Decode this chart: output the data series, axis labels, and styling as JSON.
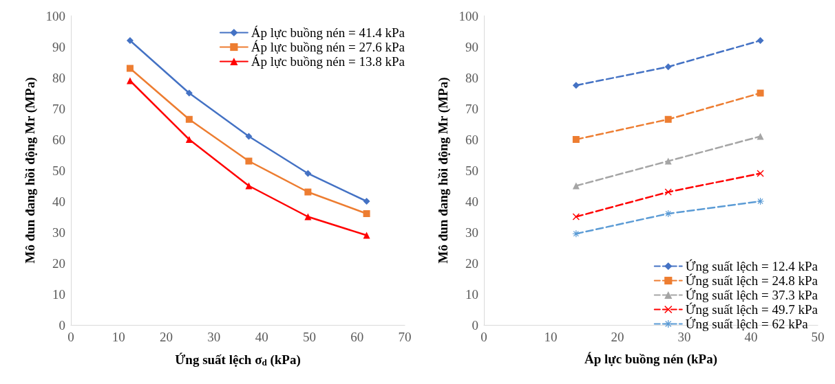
{
  "chart_data": [
    {
      "type": "line",
      "xlabel": "Ứng suất lệch σ$_{d}$ (kPa)",
      "ylabel": "Mô đun đang hồi động Mr (MPa)",
      "x": [
        12.4,
        24.8,
        37.3,
        49.7,
        62
      ],
      "xlim": [
        0,
        70
      ],
      "xticks": [
        0,
        10,
        20,
        30,
        40,
        50,
        60,
        70
      ],
      "ylim": [
        0,
        100
      ],
      "yticks": [
        0,
        10,
        20,
        30,
        40,
        50,
        60,
        70,
        80,
        90,
        100
      ],
      "grid": false,
      "legend": "top right",
      "line_style": "solid",
      "series": [
        {
          "name": "Áp lực buồng nén = 41.4 kPa",
          "color": "#4472c4",
          "marker": "diamond",
          "values": [
            92,
            75,
            61,
            49,
            40
          ]
        },
        {
          "name": "Áp lực buồng nén = 27.6 kPa",
          "color": "#ed7d31",
          "marker": "square",
          "values": [
            83,
            66.5,
            53,
            43,
            36
          ]
        },
        {
          "name": "Áp lực buồng nén = 13.8 kPa",
          "color": "#ff0000",
          "marker": "triangle",
          "values": [
            79,
            60,
            45,
            35,
            29
          ]
        }
      ]
    },
    {
      "type": "line",
      "xlabel": "Áp lực buồng nén (kPa)",
      "ylabel": "Mô đun đang hồi động Mr (MPa)",
      "x": [
        13.8,
        27.6,
        41.4
      ],
      "xlim": [
        0,
        50
      ],
      "xticks": [
        0,
        10,
        20,
        30,
        40,
        50
      ],
      "ylim": [
        0,
        100
      ],
      "yticks": [
        0,
        10,
        20,
        30,
        40,
        50,
        60,
        70,
        80,
        90,
        100
      ],
      "grid": false,
      "legend": "bottom right",
      "line_style": "dashed",
      "series": [
        {
          "name": "Ứng suất lệch = 12.4 kPa",
          "color": "#4472c4",
          "marker": "diamond",
          "values": [
            77.5,
            83.5,
            92
          ]
        },
        {
          "name": "Ứng suất lệch = 24.8 kPa",
          "color": "#ed7d31",
          "marker": "square",
          "values": [
            60,
            66.5,
            75
          ]
        },
        {
          "name": "Ứng suất lệch = 37.3 kPa",
          "color": "#a5a5a5",
          "marker": "triangle",
          "values": [
            45,
            53,
            61
          ]
        },
        {
          "name": "Ứng suất lệch = 49.7 kPa",
          "color": "#ff0000",
          "marker": "cross",
          "values": [
            35,
            43,
            49
          ]
        },
        {
          "name": "Ứng suất lệch = 62 kPa",
          "color": "#5b9bd5",
          "marker": "star",
          "values": [
            29.5,
            36,
            40
          ]
        }
      ]
    }
  ]
}
